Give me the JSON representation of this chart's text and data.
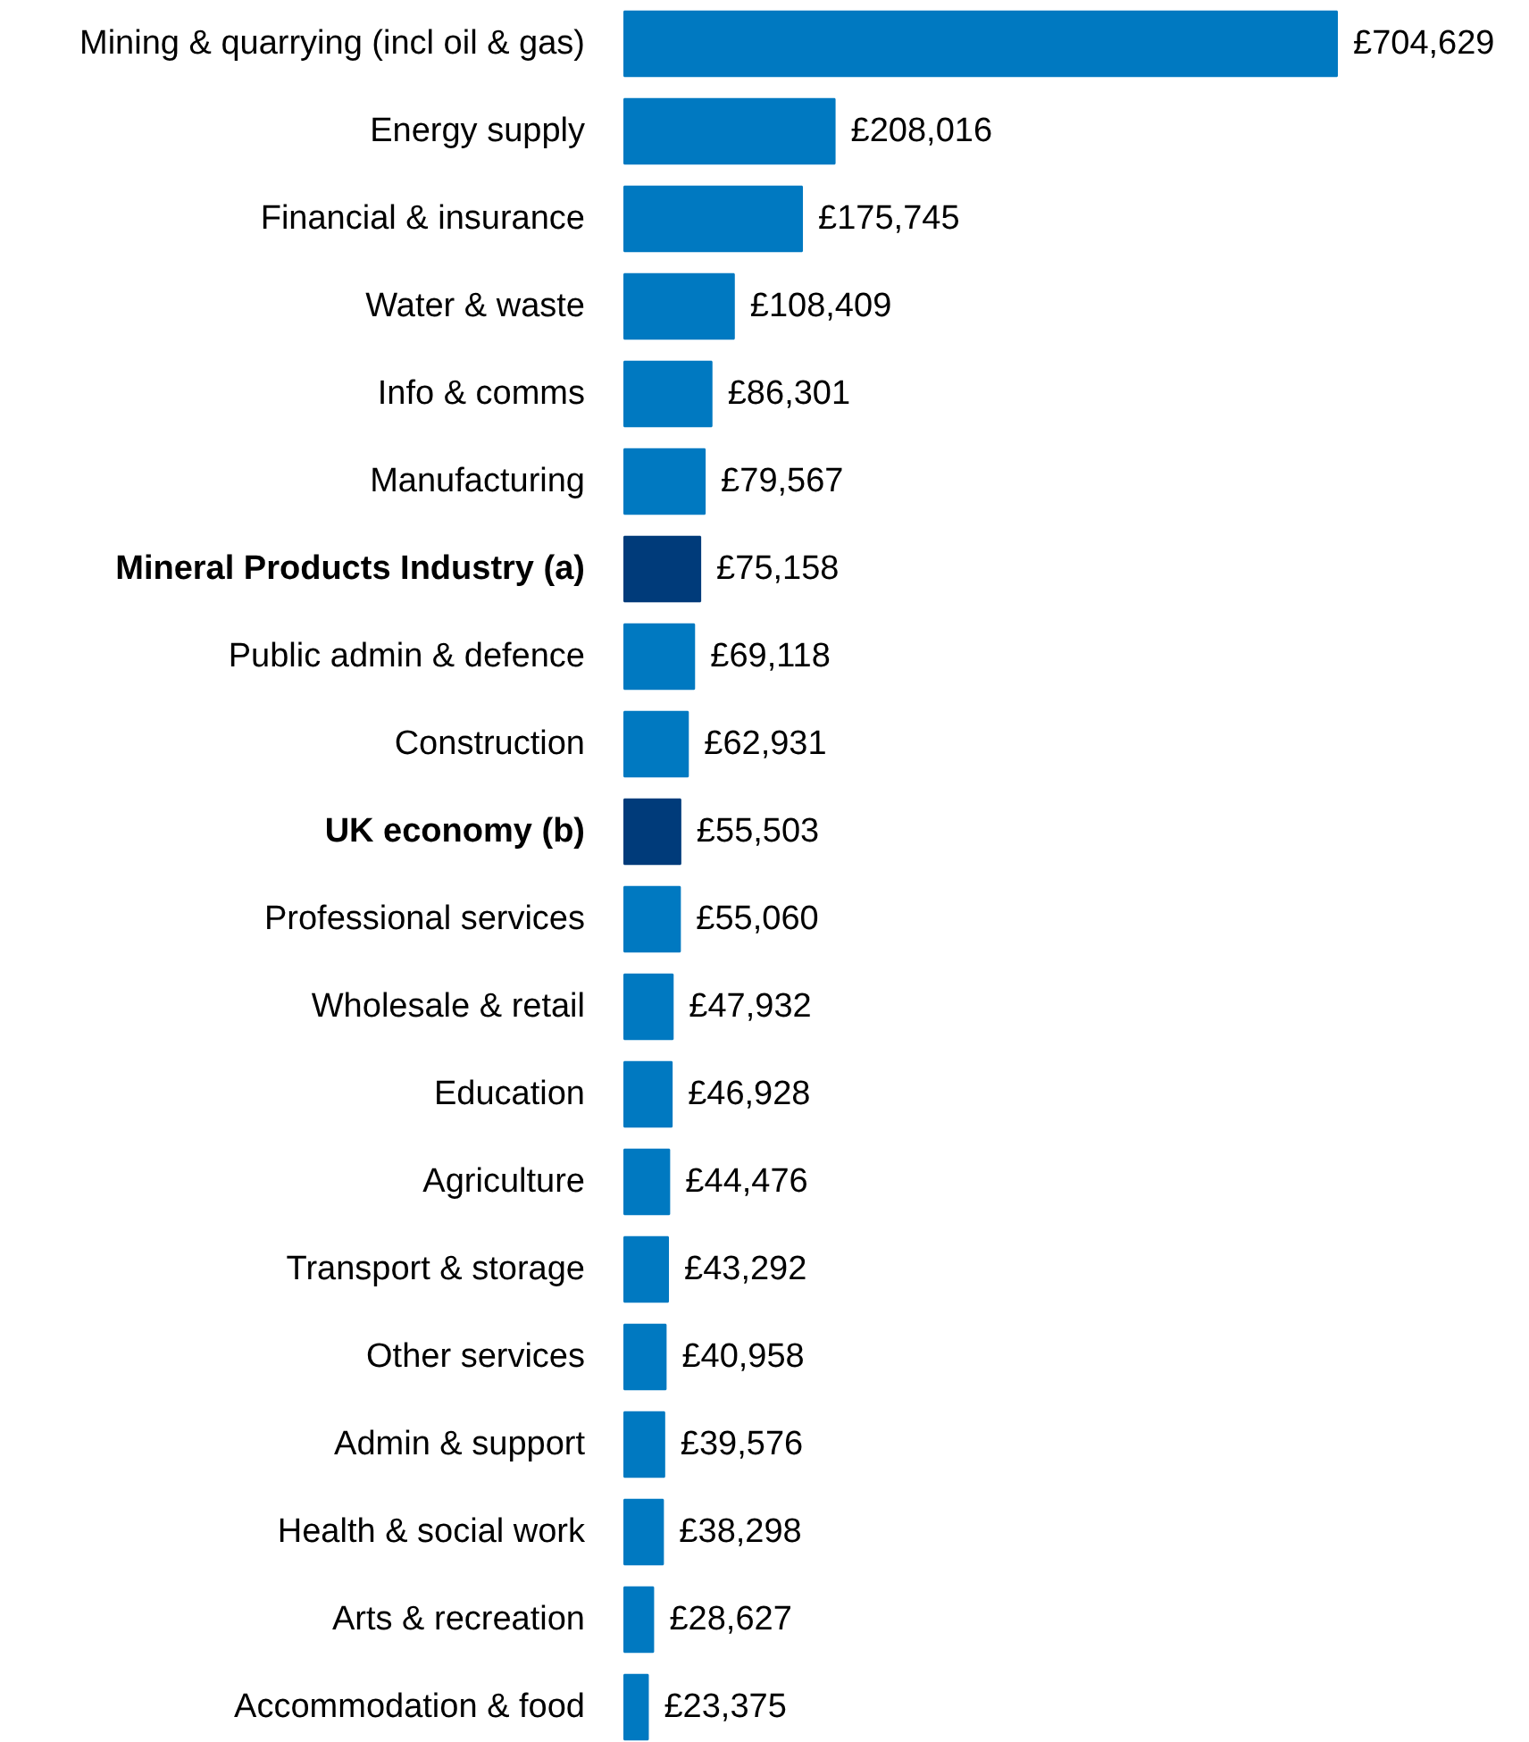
{
  "chart_data": {
    "type": "bar",
    "orientation": "horizontal",
    "categories": [
      "Mining & quarrying (incl oil & gas)",
      "Energy supply",
      "Financial & insurance",
      "Water & waste",
      "Info & comms",
      "Manufacturing",
      "Mineral Products Industry (a)",
      "Public admin & defence",
      "Construction",
      "UK economy (b)",
      "Professional services",
      "Wholesale & retail",
      "Education",
      "Agriculture",
      "Transport & storage",
      "Other services",
      "Admin & support",
      "Health & social work",
      "Arts & recreation",
      "Accommodation & food"
    ],
    "values": [
      704629,
      208016,
      175745,
      108409,
      86301,
      79567,
      75158,
      69118,
      62931,
      55503,
      55060,
      47932,
      46928,
      44476,
      43292,
      40958,
      39576,
      38298,
      28627,
      23375
    ],
    "colors": [
      "#0079c1",
      "#0079c1",
      "#0079c1",
      "#0079c1",
      "#0079c1",
      "#0079c1",
      "#003b7a",
      "#0079c1",
      "#0079c1",
      "#003b7a",
      "#0079c1",
      "#0079c1",
      "#0079c1",
      "#0079c1",
      "#0079c1",
      "#0079c1",
      "#0079c1",
      "#0079c1",
      "#0079c1",
      "#0079c1"
    ],
    "value_labels": [
      "£704,629",
      "£208,016",
      "£175,745",
      "£108,409",
      "£86,301",
      "£79,567",
      "£75,158",
      "£69,118",
      "£62,931",
      "£55,503",
      "£55,060",
      "£47,932",
      "£46,928",
      "£44,476",
      "£43,292",
      "£40,958",
      "£39,576",
      "£38,298",
      "£28,627",
      "£23,375"
    ],
    "grid": false
  }
}
